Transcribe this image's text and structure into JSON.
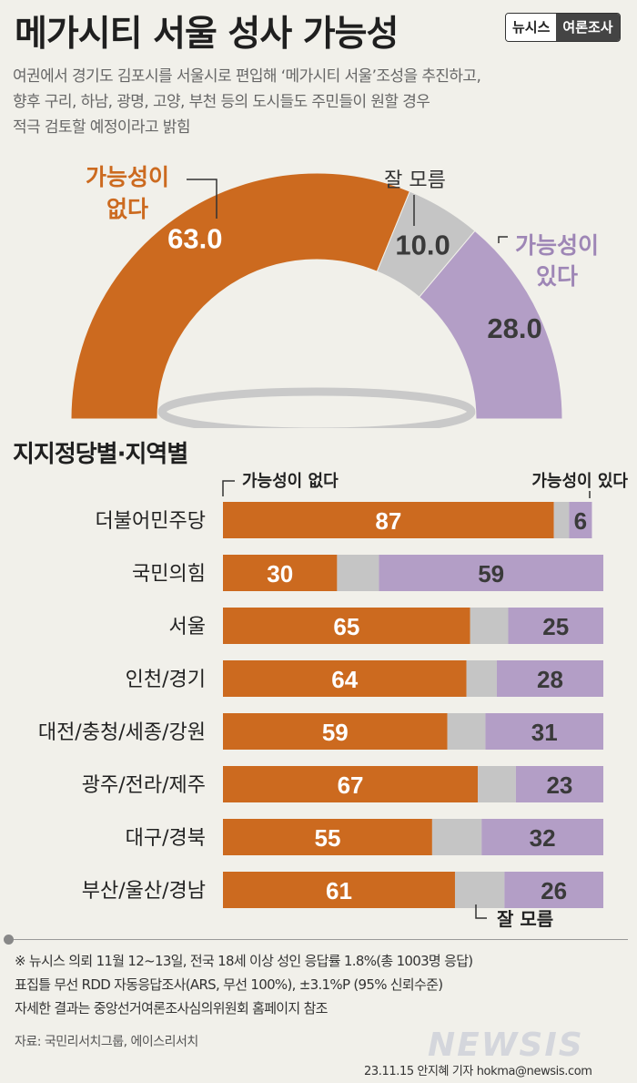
{
  "header": {
    "title": "메가시티 서울 성사 가능성",
    "brand_left": "뉴시스",
    "brand_right": "여론조사",
    "subtitle_lines": [
      "여권에서 경기도 김포시를 서울시로 편입해 ‘메가시티 서울’조성을 추진하고,",
      "향후 구리, 하남, 광명, 고양, 부천 등의 도시들도 주민들이 원할 경우",
      "적극 검토할 예정이라고 밝힘"
    ]
  },
  "chart_data": [
    {
      "type": "pie",
      "categories": [
        "가능성이 없다",
        "잘 모름",
        "가능성이 있다"
      ],
      "values": [
        63.0,
        10.0,
        28.0
      ],
      "value_labels": [
        "63.0",
        "10.0",
        "28.0"
      ],
      "legend_lines": [
        [
          "가능성이",
          "없다"
        ],
        [
          "잘 모름"
        ],
        [
          "가능성이",
          "있다"
        ]
      ],
      "colors": [
        "#cc6a1f",
        "#c5c5c5",
        "#b39ec6"
      ]
    },
    {
      "type": "bar",
      "title": "지지정당별·지역별",
      "categories": [
        "더불어민주당",
        "국민의힘",
        "서울",
        "인천/경기",
        "대전/충청/세종/강원",
        "광주/전라/제주",
        "대구/경북",
        "부산/울산/경남"
      ],
      "series": [
        {
          "name": "가능성이 없다",
          "values": [
            87,
            30,
            65,
            64,
            59,
            67,
            55,
            61
          ]
        },
        {
          "name": "잘 모름",
          "values": [
            4,
            11,
            10,
            8,
            10,
            10,
            13,
            13
          ]
        },
        {
          "name": "가능성이 있다",
          "values": [
            6,
            59,
            25,
            28,
            31,
            23,
            32,
            26
          ]
        }
      ],
      "stacked": true,
      "top_label_left": "가능성이 없다",
      "top_label_right": "가능성이 있다",
      "bottom_label": "잘 모름",
      "colors": [
        "#cc6a1f",
        "#c5c5c5",
        "#b39ec6"
      ]
    }
  ],
  "footer": {
    "note_lines": [
      "※ 뉴시스 의뢰 11월 12~13일, 전국 18세 이상 성인 응답률 1.8%(총 1003명 응답)",
      "표집틀 무선 RDD 자동응답조사(ARS, 무선 100%), ±3.1%P (95% 신뢰수준)",
      "자세한 결과는 중앙선거여론조사심의위원회 홈페이지 참조"
    ],
    "source": "자료: 국민리서치그룹, 에이스리서치",
    "watermark": "NEWSIS",
    "credit": "23.11.15 안지혜 기자 hokma@newsis.com"
  }
}
